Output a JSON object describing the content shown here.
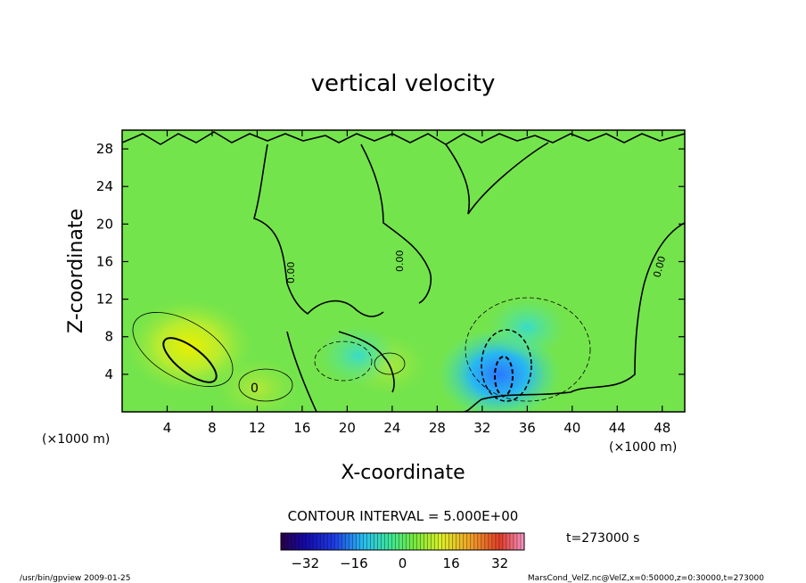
{
  "chart_data": {
    "type": "heatmap",
    "title": "vertical velocity",
    "xlabel": "X-coordinate",
    "ylabel": "Z-coordinate",
    "x_unit_left": "(×1000 m)",
    "x_unit_right": "(×1000 m)",
    "xlim": [
      0,
      50
    ],
    "ylim": [
      0,
      30
    ],
    "xticks": [
      4,
      8,
      12,
      16,
      20,
      24,
      28,
      32,
      36,
      40,
      44,
      48
    ],
    "yticks": [
      4,
      8,
      12,
      16,
      20,
      24,
      28
    ],
    "contour_interval_text": "CONTOUR INTERVAL = 5.000E+00",
    "time_text": "t=273000 s",
    "colorbar": {
      "range": [
        -40,
        40
      ],
      "ticks": [
        -32,
        -16,
        0,
        16,
        32
      ]
    },
    "contour_labels": [
      "0",
      "0.00",
      "0.00",
      "0.00"
    ],
    "features": [
      {
        "kind": "updraft",
        "x": 6,
        "z": 7,
        "value": 12
      },
      {
        "kind": "updraft",
        "x": 12,
        "z": 2.5,
        "value": 3
      },
      {
        "kind": "updraft",
        "x": 23.5,
        "z": 5,
        "value": 4
      },
      {
        "kind": "downdraft",
        "x": 33.5,
        "z": 4,
        "value": -22
      },
      {
        "kind": "downdraft",
        "x": 36,
        "z": 9,
        "value": -8
      },
      {
        "kind": "downdraft",
        "x": 21,
        "z": 6,
        "value": -6
      }
    ]
  },
  "footer": {
    "left": "/usr/bin/gpview  2009-01-25",
    "right": "MarsCond_VelZ.nc@VelZ,x=0:50000,z=0:30000,t=273000"
  }
}
